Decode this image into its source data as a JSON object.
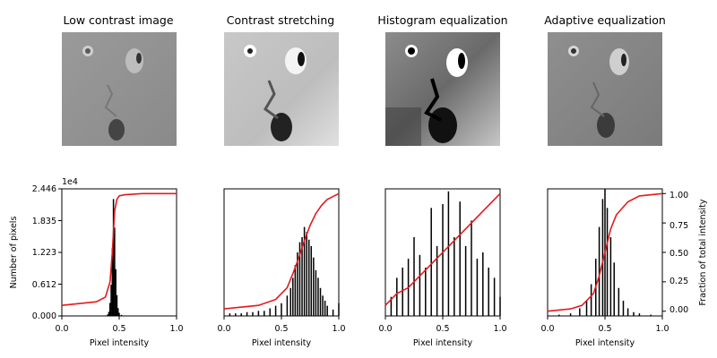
{
  "panels": [
    {
      "title": "Low contrast image"
    },
    {
      "title": "Contrast stretching"
    },
    {
      "title": "Histogram equalization"
    },
    {
      "title": "Adaptive equalization"
    }
  ],
  "axes_text": {
    "y_exponent": "1e4",
    "ylabel_left": "Number of pixels",
    "ylabel_right": "Fraction of total intensity"
  },
  "colors": {
    "histogram": "#000000",
    "cdf": "#e41a1c"
  },
  "chart_data": [
    {
      "type": "bar",
      "title": "Low contrast image",
      "xlabel": "Pixel intensity",
      "ylabel": "Number of pixels",
      "xlim": [
        0,
        1
      ],
      "ylim": [
        0,
        24460
      ],
      "xticks": [
        "0.0",
        "0.5",
        "1.0"
      ],
      "yticks": [
        "0.000",
        "0.612",
        "1.223",
        "1.835",
        "2.446"
      ],
      "series": [
        {
          "name": "histogram",
          "x": [
            0.38,
            0.4,
            0.41,
            0.42,
            0.43,
            0.44,
            0.45,
            0.46,
            0.47,
            0.48,
            0.49,
            0.5,
            0.52,
            0.55
          ],
          "values": [
            100,
            300,
            800,
            2500,
            6000,
            13000,
            22500,
            17000,
            9000,
            4000,
            1500,
            600,
            200,
            50
          ]
        },
        {
          "name": "cdf",
          "x": [
            0,
            0.3,
            0.38,
            0.42,
            0.44,
            0.46,
            0.48,
            0.5,
            0.55,
            0.7,
            1.0
          ],
          "values": [
            0.05,
            0.08,
            0.12,
            0.25,
            0.5,
            0.85,
            0.95,
            0.98,
            0.99,
            1.0,
            1.0
          ]
        }
      ]
    },
    {
      "type": "bar",
      "title": "Contrast stretching",
      "xlabel": "Pixel intensity",
      "xlim": [
        0,
        1
      ],
      "xticks": [
        "0.0",
        "0.5",
        "1.0"
      ],
      "series": [
        {
          "name": "histogram",
          "x": [
            0.05,
            0.1,
            0.15,
            0.2,
            0.25,
            0.3,
            0.35,
            0.4,
            0.45,
            0.5,
            0.55,
            0.58,
            0.6,
            0.62,
            0.64,
            0.66,
            0.68,
            0.7,
            0.72,
            0.74,
            0.76,
            0.78,
            0.8,
            0.82,
            0.84,
            0.86,
            0.88,
            0.9,
            0.95,
            1.0
          ],
          "values": [
            0.02,
            0.02,
            0.02,
            0.03,
            0.03,
            0.04,
            0.04,
            0.06,
            0.08,
            0.1,
            0.16,
            0.22,
            0.3,
            0.4,
            0.5,
            0.58,
            0.62,
            0.7,
            0.66,
            0.6,
            0.55,
            0.46,
            0.36,
            0.3,
            0.22,
            0.16,
            0.12,
            0.08,
            0.05,
            0.1
          ]
        },
        {
          "name": "cdf",
          "x": [
            0,
            0.3,
            0.45,
            0.55,
            0.6,
            0.65,
            0.7,
            0.75,
            0.8,
            0.85,
            0.9,
            1.0
          ],
          "values": [
            0.02,
            0.05,
            0.1,
            0.2,
            0.32,
            0.45,
            0.6,
            0.73,
            0.83,
            0.9,
            0.95,
            1.0
          ]
        }
      ]
    },
    {
      "type": "bar",
      "title": "Histogram equalization",
      "xlabel": "Pixel intensity",
      "xlim": [
        0,
        1
      ],
      "xticks": [
        "0.0",
        "0.5",
        "1.0"
      ],
      "series": [
        {
          "name": "histogram",
          "x": [
            0.05,
            0.1,
            0.15,
            0.2,
            0.25,
            0.3,
            0.35,
            0.4,
            0.45,
            0.5,
            0.55,
            0.6,
            0.65,
            0.7,
            0.75,
            0.8,
            0.85,
            0.9,
            0.95,
            1.0
          ],
          "values": [
            0.15,
            0.3,
            0.38,
            0.45,
            0.62,
            0.48,
            0.38,
            0.85,
            0.55,
            0.88,
            0.98,
            0.62,
            0.9,
            0.55,
            0.75,
            0.45,
            0.5,
            0.38,
            0.3,
            0.15
          ]
        },
        {
          "name": "cdf",
          "x": [
            0,
            0.1,
            0.2,
            0.3,
            0.4,
            0.5,
            0.6,
            0.7,
            0.8,
            0.9,
            1.0
          ],
          "values": [
            0.05,
            0.15,
            0.2,
            0.3,
            0.4,
            0.5,
            0.6,
            0.7,
            0.8,
            0.9,
            1.0
          ]
        }
      ]
    },
    {
      "type": "bar",
      "title": "Adaptive equalization",
      "xlabel": "Pixel intensity",
      "ylabel": "Fraction of total intensity",
      "xlim": [
        0,
        1
      ],
      "ylim": [
        -0.04,
        1.04
      ],
      "xticks": [
        "0.0",
        "0.5",
        "1.0"
      ],
      "yticks": [
        "0.00",
        "0.25",
        "0.50",
        "0.75",
        "1.00"
      ],
      "series": [
        {
          "name": "histogram",
          "x": [
            0.1,
            0.2,
            0.28,
            0.34,
            0.38,
            0.42,
            0.45,
            0.48,
            0.5,
            0.52,
            0.55,
            0.58,
            0.62,
            0.66,
            0.7,
            0.75,
            0.8,
            0.9
          ],
          "values": [
            0.01,
            0.02,
            0.06,
            0.12,
            0.25,
            0.45,
            0.7,
            0.92,
            1.0,
            0.85,
            0.62,
            0.42,
            0.22,
            0.12,
            0.06,
            0.03,
            0.02,
            0.01
          ]
        },
        {
          "name": "cdf",
          "x": [
            0,
            0.2,
            0.3,
            0.4,
            0.45,
            0.5,
            0.55,
            0.6,
            0.7,
            0.8,
            1.0
          ],
          "values": [
            0.0,
            0.02,
            0.05,
            0.15,
            0.3,
            0.5,
            0.7,
            0.82,
            0.93,
            0.98,
            1.0
          ]
        }
      ]
    }
  ]
}
